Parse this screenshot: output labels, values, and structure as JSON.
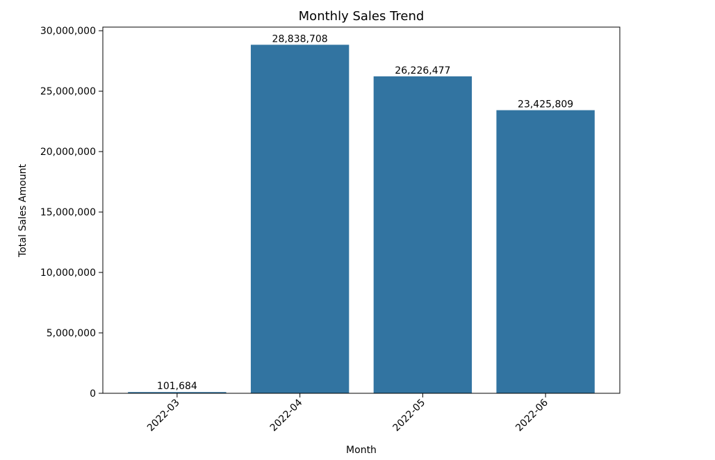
{
  "chart_data": {
    "type": "bar",
    "title": "Monthly Sales Trend",
    "xlabel": "Month",
    "ylabel": "Total Sales Amount",
    "categories": [
      "2022-03",
      "2022-04",
      "2022-05",
      "2022-06"
    ],
    "values": [
      101684,
      28838708,
      26226477,
      23425809
    ],
    "value_labels": [
      "101,684",
      "28,838,708",
      "26,226,477",
      "23,425,809"
    ],
    "ylim": [
      0,
      30300000
    ],
    "yticks": [
      0,
      5000000,
      10000000,
      15000000,
      20000000,
      25000000,
      30000000
    ],
    "ytick_labels": [
      "0",
      "5,000,000",
      "10,000,000",
      "15,000,000",
      "20,000,000",
      "25,000,000",
      "30,000,000"
    ],
    "x_tick_rotation_degrees": 45,
    "bar_color": "#3274a1",
    "grid": false,
    "legend": "none"
  }
}
